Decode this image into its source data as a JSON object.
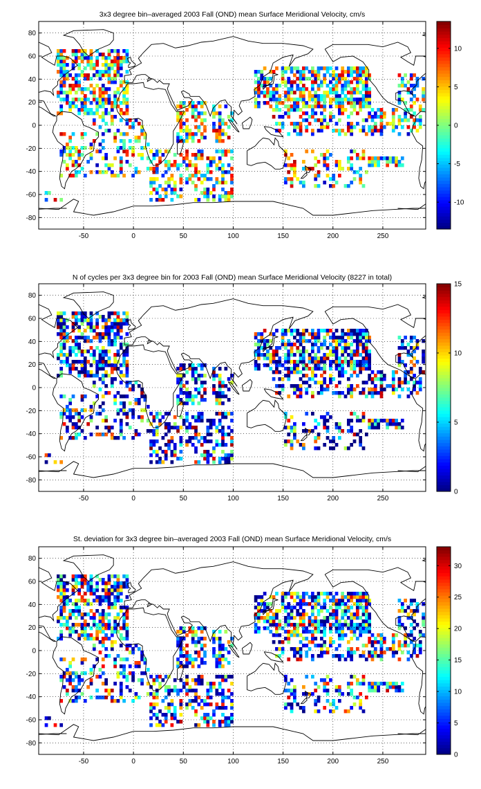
{
  "chart_data": [
    {
      "type": "heatmap",
      "title": "3x3 degree bin–averaged 2003 Fall (OND) mean Surface Meridional Velocity, cm/s",
      "xlabel": "",
      "ylabel": "",
      "xlim": [
        -95,
        293
      ],
      "ylim": [
        -90,
        90
      ],
      "xticks": [
        -50,
        0,
        50,
        100,
        150,
        200,
        250
      ],
      "yticks": [
        -80,
        -60,
        -40,
        -20,
        0,
        20,
        40,
        60,
        80
      ],
      "grid": true,
      "colorbar": {
        "range": [
          -13.5,
          13.5
        ],
        "ticks": [
          -10,
          -5,
          0,
          5,
          10
        ]
      },
      "bin_size_deg": 3
    },
    {
      "type": "heatmap",
      "title": "N of cycles per 3x3 degree bin for 2003 Fall (OND) mean Surface Meridional Velocity (8227 in total)",
      "xlabel": "",
      "ylabel": "",
      "xlim": [
        -95,
        293
      ],
      "ylim": [
        -90,
        90
      ],
      "xticks": [
        -50,
        0,
        50,
        100,
        150,
        200,
        250
      ],
      "yticks": [
        -80,
        -60,
        -40,
        -20,
        0,
        20,
        40,
        60,
        80
      ],
      "grid": true,
      "colorbar": {
        "range": [
          0,
          15
        ],
        "ticks": [
          0,
          5,
          10,
          15
        ]
      },
      "bin_size_deg": 3
    },
    {
      "type": "heatmap",
      "title": "St. deviation for 3x3 degree bin–averaged 2003 Fall (OND) mean Surface Meridional Velocity, cm/s",
      "xlabel": "",
      "ylabel": "",
      "xlim": [
        -95,
        293
      ],
      "ylim": [
        -90,
        90
      ],
      "xticks": [
        -50,
        0,
        50,
        100,
        150,
        200,
        250
      ],
      "yticks": [
        -80,
        -60,
        -40,
        -20,
        0,
        20,
        40,
        60,
        80
      ],
      "grid": true,
      "colorbar": {
        "range": [
          0,
          33
        ],
        "ticks": [
          0,
          5,
          10,
          15,
          20,
          25,
          30
        ]
      },
      "bin_size_deg": 3
    }
  ]
}
